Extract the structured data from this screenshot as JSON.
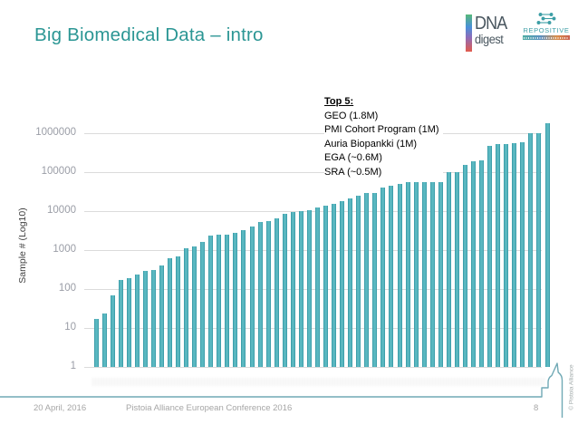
{
  "slide": {
    "title": "Big Biomedical Data – intro"
  },
  "logos": {
    "dna_digest": {
      "line1": "DNA",
      "line2": "digest"
    },
    "repositive": {
      "name": "REPOSITIVE"
    }
  },
  "chart_data": {
    "type": "bar",
    "title": "",
    "xlabel": "",
    "ylabel": "Sample # (Log10)",
    "scale": "log10",
    "ylim": [
      1,
      2000000
    ],
    "grid": true,
    "legend": "none",
    "n_bars": 56,
    "bar_color": "#59B7C0",
    "y_ticks": [
      1,
      10,
      100,
      1000,
      10000,
      100000,
      1000000
    ],
    "y_tick_labels": [
      "1",
      "10",
      "100",
      "1000",
      "10000",
      "100000",
      "1000000"
    ],
    "values": [
      17,
      23,
      70,
      170,
      190,
      235,
      290,
      300,
      400,
      620,
      700,
      1100,
      1250,
      1650,
      2400,
      2500,
      2550,
      2700,
      3300,
      4100,
      5300,
      5600,
      6600,
      8600,
      9600,
      9800,
      10700,
      12500,
      13500,
      15000,
      18000,
      21000,
      25000,
      29000,
      29000,
      40000,
      45000,
      50000,
      55000,
      60000,
      80000,
      95000,
      95000,
      100000,
      100000,
      155000,
      190000,
      200000,
      480000,
      520000,
      520000,
      550000,
      580000,
      1000000,
      1000000,
      1800000
    ],
    "annotation": {
      "title": "Top 5:",
      "lines": [
        "GEO (1.8M)",
        "PMI Cohort Program (1M)",
        "Auria Biopankki (1M)",
        "EGA (~0.6M)",
        "SRA (~0.5M)"
      ]
    }
  },
  "footer": {
    "date": "20 April, 2016",
    "conference": "Pistoia Alliance European Conference 2016",
    "page_number": "8",
    "copyright": "© Pistoia Alliance"
  },
  "colors": {
    "title_teal": "#2B9694",
    "bar_teal": "#59B7C0",
    "footer_line_teal": "#70A9B5",
    "gridline_gray": "#DBDBDB",
    "tick_label_gray": "#9A9DA6",
    "footer_text_gray": "#A6A6A6"
  }
}
